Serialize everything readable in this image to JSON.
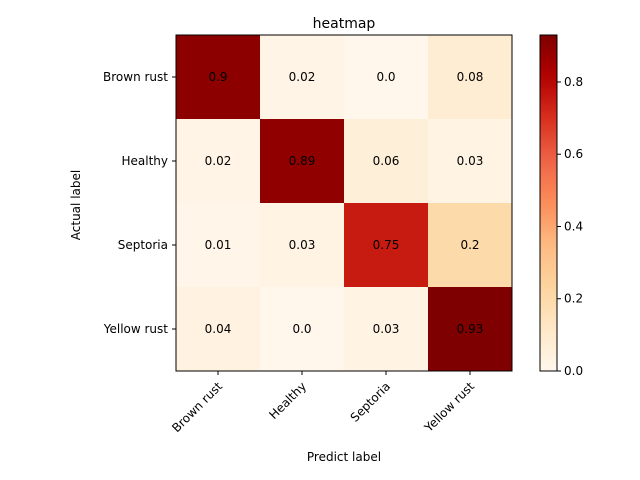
{
  "chart_data": {
    "type": "heatmap",
    "title": "heatmap",
    "xlabel": "Predict label",
    "ylabel": "Actual label",
    "x_categories": [
      "Brown rust",
      "Healthy",
      "Septoria",
      "Yellow rust"
    ],
    "y_categories": [
      "Brown rust",
      "Healthy",
      "Septoria",
      "Yellow rust"
    ],
    "values": [
      [
        0.9,
        0.02,
        0.0,
        0.08
      ],
      [
        0.02,
        0.89,
        0.06,
        0.03
      ],
      [
        0.01,
        0.03,
        0.75,
        0.2
      ],
      [
        0.04,
        0.0,
        0.03,
        0.93
      ]
    ],
    "value_labels": [
      [
        "0.9",
        "0.02",
        "0.0",
        "0.08"
      ],
      [
        "0.02",
        "0.89",
        "0.06",
        "0.03"
      ],
      [
        "0.01",
        "0.03",
        "0.75",
        "0.2"
      ],
      [
        "0.04",
        "0.0",
        "0.03",
        "0.93"
      ]
    ],
    "colormap": "OrRd",
    "colorbar": {
      "range": [
        0,
        0.93
      ],
      "ticks": [
        0.0,
        0.2,
        0.4,
        0.6,
        0.8
      ],
      "tick_labels": [
        "0.0",
        "0.2",
        "0.4",
        "0.6",
        "0.8"
      ]
    },
    "colors": {
      "low": "#fff7ec",
      "high": "#7f0000"
    },
    "grid": false
  }
}
